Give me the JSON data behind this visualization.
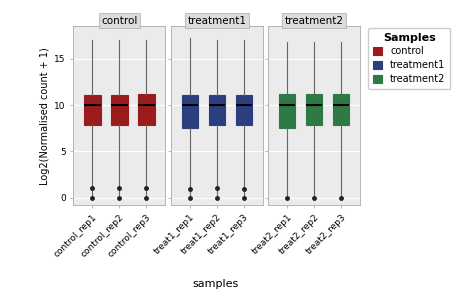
{
  "groups": [
    "control",
    "treatment1",
    "treatment2"
  ],
  "samples": {
    "control": [
      "control_rep1",
      "control_rep2",
      "control_rep3"
    ],
    "treatment1": [
      "treat1_rep1",
      "treat1_rep2",
      "treat1_rep3"
    ],
    "treatment2": [
      "treat2_rep1",
      "treat2_rep2",
      "treat2_rep3"
    ]
  },
  "colors": {
    "control": "#9B1C1C",
    "treatment1": "#2B3F7E",
    "treatment2": "#2D7A45"
  },
  "box_stats_per_group": {
    "control": [
      {
        "med": 10.0,
        "q1": 7.8,
        "q3": 11.1,
        "whislo": 0.05,
        "whishi": 17.0,
        "fliers": [
          0.0,
          1.1
        ]
      },
      {
        "med": 10.0,
        "q1": 7.8,
        "q3": 11.1,
        "whislo": 0.05,
        "whishi": 17.0,
        "fliers": [
          0.0,
          1.1
        ]
      },
      {
        "med": 10.0,
        "q1": 7.8,
        "q3": 11.15,
        "whislo": 0.05,
        "whishi": 17.0,
        "fliers": [
          0.0,
          1.1
        ]
      }
    ],
    "treatment1": [
      {
        "med": 10.0,
        "q1": 7.5,
        "q3": 11.1,
        "whislo": 0.0,
        "whishi": 17.2,
        "fliers": [
          0.0,
          0.9
        ]
      },
      {
        "med": 10.0,
        "q1": 7.8,
        "q3": 11.1,
        "whislo": 0.05,
        "whishi": 17.0,
        "fliers": [
          0.0,
          1.1
        ]
      },
      {
        "med": 10.0,
        "q1": 7.8,
        "q3": 11.1,
        "whislo": 0.05,
        "whishi": 17.0,
        "fliers": [
          0.0,
          0.9
        ]
      }
    ],
    "treatment2": [
      {
        "med": 10.0,
        "q1": 7.5,
        "q3": 11.2,
        "whislo": 0.05,
        "whishi": 16.8,
        "fliers": [
          0.0
        ]
      },
      {
        "med": 10.0,
        "q1": 7.8,
        "q3": 11.2,
        "whislo": 0.05,
        "whishi": 16.8,
        "fliers": [
          0.0
        ]
      },
      {
        "med": 10.0,
        "q1": 7.8,
        "q3": 11.2,
        "whislo": 0.05,
        "whishi": 16.8,
        "fliers": [
          0.0
        ]
      }
    ]
  },
  "ylim": [
    -0.8,
    18.5
  ],
  "yticks": [
    0,
    5,
    10,
    15
  ],
  "ylabel": "Log2(Normalised count + 1)",
  "xlabel": "samples",
  "legend_title": "Samples",
  "legend_labels": [
    "control",
    "treatment1",
    "treatment2"
  ],
  "panel_label_color": "#DCDCDC",
  "background_color": "#FFFFFF",
  "panel_bg": "#EBEBEB",
  "grid_color": "#FFFFFF",
  "box_width": 0.6,
  "flier_size": 2.5,
  "whisker_color": "#666666",
  "median_color": "#000000"
}
